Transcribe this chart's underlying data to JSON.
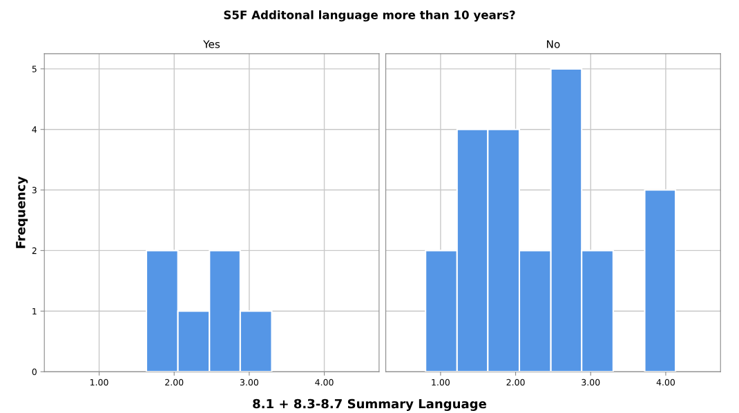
{
  "chart_data": [
    {
      "type": "histogram",
      "title": "S5F Additonal language more than 10 years?",
      "subtitle": "Yes",
      "xlabel": "8.1 + 8.3-8.7 Summary Language",
      "ylabel": "Frequency",
      "bins": [
        1.63,
        2.05,
        2.47,
        2.88,
        3.3
      ],
      "values": [
        2,
        1,
        2,
        1
      ],
      "color": "#5596e6",
      "xlim": [
        0.27,
        4.73
      ],
      "xticks": [
        {
          "value": 1,
          "label": "1.00"
        },
        {
          "value": 2,
          "label": "2.00"
        },
        {
          "value": 3,
          "label": "3.00"
        },
        {
          "value": 4,
          "label": "4.00"
        }
      ],
      "ylim": [
        0,
        5.25
      ],
      "yticks": [
        0,
        1,
        2,
        3,
        4,
        5
      ],
      "grid": true
    },
    {
      "type": "histogram",
      "subtitle": "No",
      "bins": [
        0.8,
        1.22,
        1.63,
        2.05,
        2.47,
        2.88,
        3.3,
        3.72,
        4.13
      ],
      "values": [
        2,
        4,
        4,
        2,
        5,
        2,
        0,
        3
      ],
      "color": "#5596e6",
      "xlim": [
        0.27,
        4.73
      ],
      "xticks": [
        {
          "value": 1,
          "label": "1.00"
        },
        {
          "value": 2,
          "label": "2.00"
        },
        {
          "value": 3,
          "label": "3.00"
        },
        {
          "value": 4,
          "label": "4.00"
        }
      ],
      "ylim": [
        0,
        5.25
      ],
      "yticks": [
        0,
        1,
        2,
        3,
        4,
        5
      ],
      "grid": true,
      "tick_labels": "x"
    }
  ]
}
